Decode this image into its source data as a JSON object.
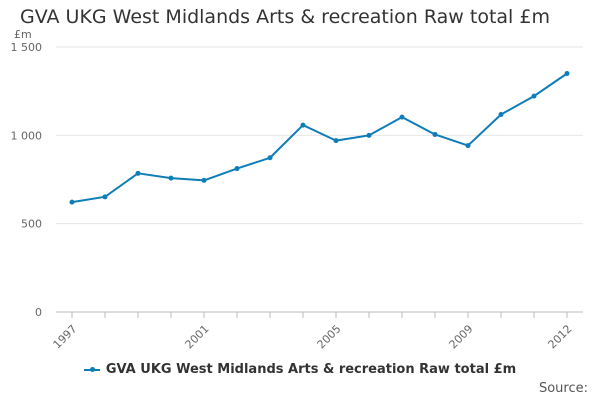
{
  "page": {
    "title": "GVA UKG West Midlands Arts & recreation Raw total £m",
    "source_label": "Source:"
  },
  "chart_data": {
    "type": "line",
    "title": "GVA UKG West Midlands Arts & recreation Raw total £m",
    "unit_label": "£m",
    "xlabel": "",
    "ylabel": "",
    "x": [
      1997,
      1998,
      1999,
      2000,
      2001,
      2002,
      2003,
      2004,
      2005,
      2006,
      2007,
      2008,
      2009,
      2010,
      2011,
      2012
    ],
    "x_tick_labels": [
      "1997",
      "2001",
      "2005",
      "2009",
      "2012"
    ],
    "y_ticks": [
      0,
      500,
      1000,
      1500
    ],
    "y_tick_labels": [
      "0",
      "500",
      "1 000",
      "1 500"
    ],
    "ylim": [
      0,
      1500
    ],
    "grid": "horizontal",
    "legend_position": "bottom",
    "series": [
      {
        "name": "GVA UKG West Midlands Arts & recreation Raw total £m",
        "color": "#0e7db8",
        "values": [
          622,
          652,
          785,
          758,
          745,
          812,
          873,
          1058,
          970,
          1000,
          1103,
          1005,
          942,
          1118,
          1222,
          1350
        ]
      }
    ]
  }
}
